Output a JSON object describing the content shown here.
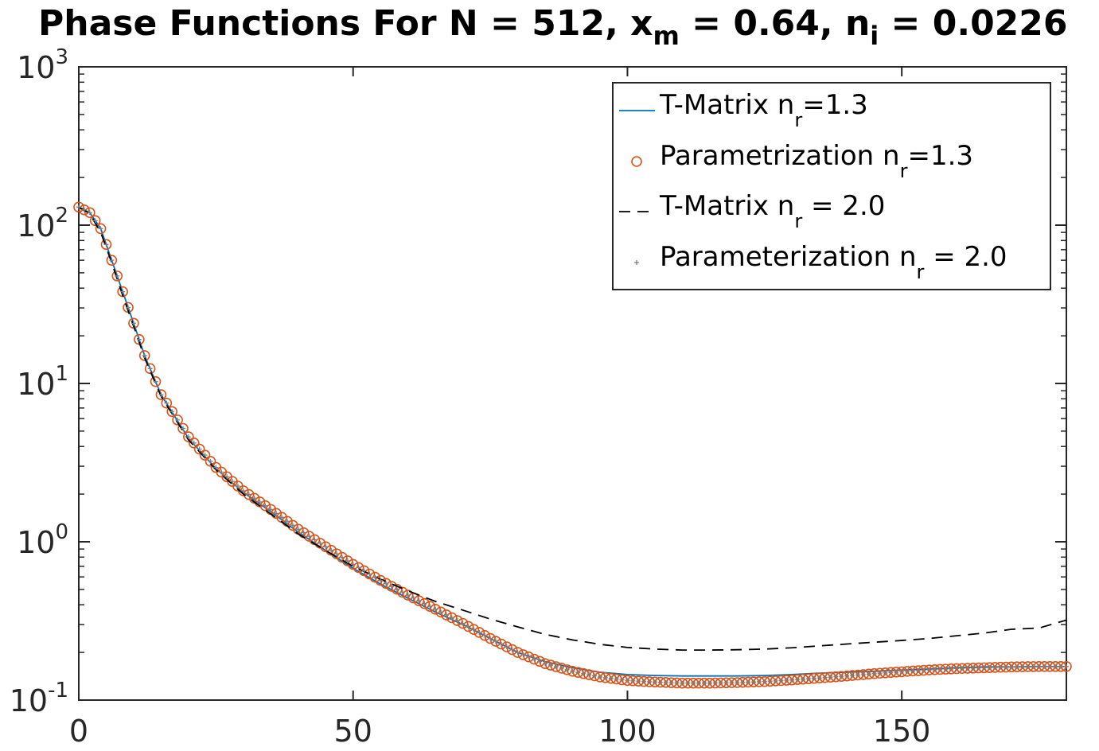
{
  "chart_data": {
    "type": "line",
    "title": "Phase Functions For N = 512, x",
    "title_parts": {
      "prefix": "Phase Functions For N = 512, x",
      "xm_sub": "m",
      "middle": " = 0.64, n",
      "ni_sub": "i",
      "suffix": " = 0.0226"
    },
    "xlabel": "",
    "ylabel": "",
    "xlim": [
      0,
      180
    ],
    "ylim": [
      0.1,
      1000
    ],
    "yscale": "log",
    "grid": false,
    "legend_position": "top-right",
    "x_ticks": [
      "0",
      "50",
      "100",
      "150"
    ],
    "y_ticks": [
      {
        "base": "10",
        "exp": "-1"
      },
      {
        "base": "10",
        "exp": "0"
      },
      {
        "base": "10",
        "exp": "1"
      },
      {
        "base": "10",
        "exp": "2"
      },
      {
        "base": "10",
        "exp": "3"
      }
    ],
    "series": [
      {
        "name": "T-Matrix n_r=1.3",
        "legend_main": "T-Matrix n",
        "legend_sub": "r",
        "legend_tail": "=1.3",
        "style": "line",
        "color": "#0072BD",
        "x": [
          0,
          2,
          4,
          6,
          8,
          10,
          12,
          15,
          20,
          25,
          30,
          35,
          40,
          45,
          50,
          55,
          60,
          65,
          70,
          75,
          80,
          85,
          90,
          95,
          100,
          105,
          110,
          115,
          120,
          125,
          130,
          135,
          140,
          145,
          150,
          155,
          160,
          165,
          170,
          175,
          180
        ],
        "y": [
          130,
          120,
          95,
          60,
          38,
          24,
          15,
          8.5,
          4.5,
          2.9,
          2.05,
          1.55,
          1.15,
          0.88,
          0.68,
          0.54,
          0.44,
          0.36,
          0.3,
          0.245,
          0.2,
          0.175,
          0.16,
          0.15,
          0.145,
          0.143,
          0.142,
          0.142,
          0.142,
          0.143,
          0.145,
          0.148,
          0.15,
          0.152,
          0.155,
          0.157,
          0.16,
          0.162,
          0.162,
          0.163,
          0.163
        ]
      },
      {
        "name": "Parametrization n_r=1.3",
        "legend_main": "Parametrization n",
        "legend_sub": "r",
        "legend_tail": "=1.3",
        "style": "circle",
        "color": "#D95319",
        "x": [
          0,
          2,
          4,
          6,
          8,
          10,
          12,
          15,
          20,
          25,
          30,
          35,
          40,
          45,
          50,
          55,
          60,
          65,
          70,
          75,
          80,
          85,
          90,
          95,
          100,
          105,
          110,
          115,
          120,
          125,
          130,
          135,
          140,
          145,
          150,
          155,
          160,
          165,
          170,
          175,
          180
        ],
        "y": [
          130,
          120,
          95,
          60,
          38,
          24,
          15,
          8.5,
          4.6,
          2.95,
          2.1,
          1.6,
          1.2,
          0.93,
          0.72,
          0.57,
          0.46,
          0.375,
          0.305,
          0.245,
          0.2,
          0.17,
          0.152,
          0.14,
          0.133,
          0.13,
          0.128,
          0.128,
          0.129,
          0.131,
          0.134,
          0.138,
          0.142,
          0.147,
          0.151,
          0.155,
          0.158,
          0.16,
          0.162,
          0.163,
          0.163
        ]
      },
      {
        "name": "T-Matrix n_r = 2.0",
        "legend_main": "T-Matrix n",
        "legend_sub": "r",
        "legend_tail": " = 2.0",
        "style": "dashed",
        "color": "#000000",
        "x": [
          0,
          2,
          4,
          6,
          8,
          10,
          12,
          15,
          20,
          25,
          30,
          35,
          40,
          45,
          50,
          55,
          60,
          65,
          70,
          75,
          80,
          85,
          90,
          95,
          100,
          105,
          110,
          115,
          120,
          125,
          130,
          135,
          140,
          145,
          150,
          155,
          160,
          165,
          170,
          175,
          180
        ],
        "y": [
          130,
          118,
          90,
          58,
          36,
          23,
          14.5,
          8.3,
          4.4,
          2.85,
          2.0,
          1.5,
          1.12,
          0.88,
          0.7,
          0.58,
          0.49,
          0.42,
          0.37,
          0.325,
          0.29,
          0.26,
          0.24,
          0.225,
          0.215,
          0.21,
          0.207,
          0.207,
          0.208,
          0.21,
          0.214,
          0.22,
          0.226,
          0.232,
          0.238,
          0.245,
          0.255,
          0.265,
          0.28,
          0.285,
          0.32
        ]
      },
      {
        "name": "Parameterization n_r = 2.0",
        "legend_main": "Parameterization n",
        "legend_sub": "r",
        "legend_tail": " = 2.0",
        "style": "plus",
        "color": "#7F7F7F",
        "x": [
          0,
          2,
          4,
          6,
          8,
          10,
          12,
          15,
          20,
          25,
          30,
          35,
          40,
          45,
          50,
          55,
          60,
          65,
          70,
          75,
          80,
          85,
          90,
          95,
          100,
          105,
          110,
          115,
          120,
          125,
          130,
          135,
          140,
          145,
          150,
          155,
          160,
          165,
          170,
          175,
          180
        ],
        "y": [
          130,
          120,
          95,
          60,
          38,
          24,
          15,
          8.5,
          4.6,
          2.95,
          2.1,
          1.6,
          1.2,
          0.93,
          0.72,
          0.57,
          0.46,
          0.375,
          0.305,
          0.245,
          0.2,
          0.17,
          0.152,
          0.14,
          0.133,
          0.13,
          0.128,
          0.128,
          0.129,
          0.131,
          0.134,
          0.138,
          0.142,
          0.147,
          0.151,
          0.155,
          0.158,
          0.16,
          0.162,
          0.163,
          0.163
        ]
      }
    ]
  }
}
